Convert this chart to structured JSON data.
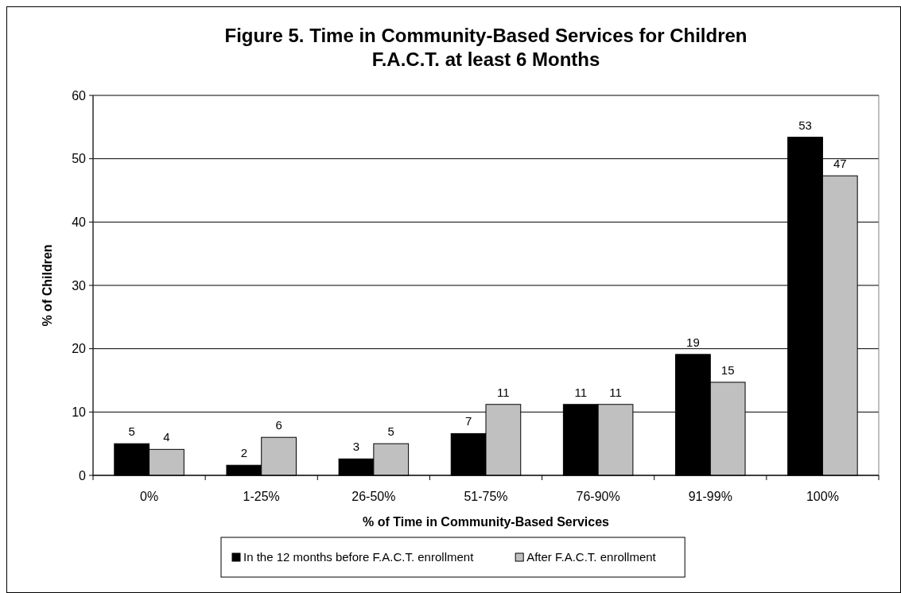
{
  "chart_data": {
    "type": "bar",
    "title": "Figure 5. Time in Community-Based Services for Children\nF.A.C.T. at least 6 Months",
    "xlabel": "% of Time in Community-Based Services",
    "ylabel": "% of Children",
    "categories": [
      "0%",
      "1-25%",
      "26-50%",
      "51-75%",
      "76-90%",
      "91-99%",
      "100%"
    ],
    "series": [
      {
        "name": "In the 12 months before F.A.C.T. enrollment",
        "color": "#000000",
        "values": [
          5.0,
          1.6,
          2.6,
          6.6,
          11.2,
          19.1,
          53.4
        ],
        "value_labels": [
          "5",
          "2",
          "3",
          "7",
          "11",
          "19",
          "53"
        ]
      },
      {
        "name": "After F.A.C.T. enrollment",
        "color": "#c0c0c0",
        "values": [
          4.1,
          6.0,
          5.0,
          11.2,
          11.2,
          14.7,
          47.3
        ],
        "value_labels": [
          "4",
          "6",
          "5",
          "11",
          "11",
          "15",
          "47"
        ]
      }
    ],
    "ylim": [
      0,
      60
    ],
    "yticks": [
      0,
      10,
      20,
      30,
      40,
      50,
      60
    ],
    "grid": "y",
    "legend": "bottom"
  }
}
